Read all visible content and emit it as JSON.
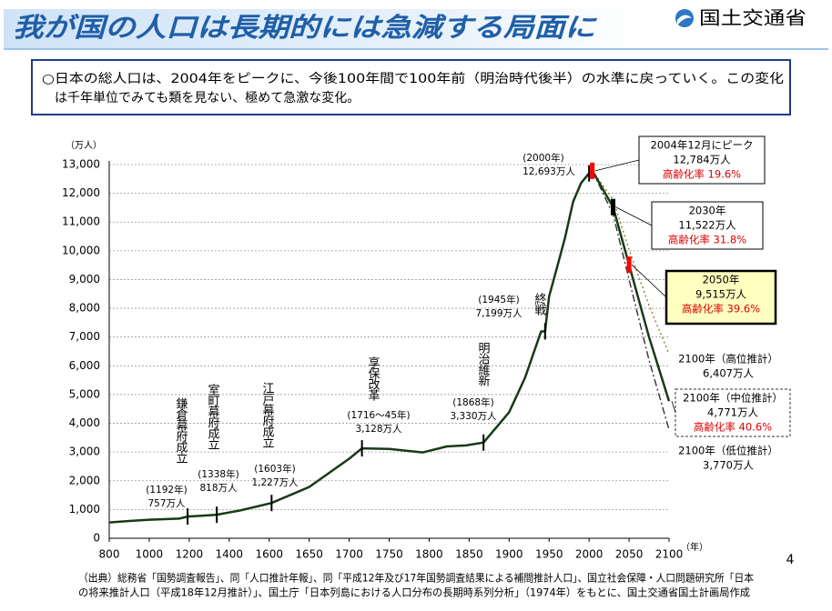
{
  "header": {
    "title": "我が国の人口は長期的には急減する局面に",
    "logo": "国土交通省"
  },
  "summary": [
    "○日本の総人口は、2004年をピークに、今後100年間で100年前（明治時代後半）の水準に戻っていく。この変化",
    "は千年単位でみても類を見ない、極めて急激な変化。"
  ],
  "footer": {
    "source": [
      "（出典）総務省「国勢調査報告」、同「人口推計年報」、同「平成12年及び17年国勢調査結果による補間推計人口」、国立社会保障・人口問題研究所「日本",
      "の将来推計人口（平成18年12月推計）」、国土庁「日本列島における人口分布の長期時系列分析」（1974年）をもとに、国土交通省国土計画局作成"
    ],
    "page": "4"
  },
  "chart_data": {
    "type": "line",
    "y_label": "（万人）",
    "x_label": "（年）",
    "xlim": [
      800,
      2100
    ],
    "xticks": [
      800,
      1000,
      1200,
      1400,
      1600,
      1650,
      1700,
      1750,
      1800,
      1850,
      1900,
      1950,
      2000,
      2050,
      2100
    ],
    "ylim": [
      0,
      13000
    ],
    "yticks": [
      0,
      {
        "value": 1000,
        "label": "1,000"
      },
      {
        "value": 2000,
        "label": "2,000"
      },
      {
        "value": 3000,
        "label": "3,000"
      },
      {
        "value": 4000,
        "label": "4,000"
      },
      {
        "value": 5000,
        "label": "5,000"
      },
      {
        "value": 6000,
        "label": "6,000"
      },
      {
        "value": 7000,
        "label": "7,000"
      },
      {
        "value": 8000,
        "label": "8,000"
      },
      {
        "value": 9000,
        "label": "9,000"
      },
      {
        "value": 10000,
        "label": "10,000"
      },
      {
        "value": 11000,
        "label": "11,000"
      },
      {
        "value": 12000,
        "label": "12,000"
      },
      {
        "value": 13000,
        "label": "13,000"
      }
    ],
    "grid": true,
    "series": [
      {
        "color": "#173a17",
        "dash": "solid",
        "x": [
          800,
          900,
          1000,
          1150,
          1192,
          1280,
          1338,
          1450,
          1603,
          1650,
          1700,
          1716,
          1750,
          1792,
          1822,
          1846,
          1868,
          1900,
          1920,
          1940,
          1945,
          1950,
          1960,
          1970,
          1980,
          1990,
          2000,
          2004
        ],
        "values": [
          551,
          600,
          644,
          684,
          757,
          790,
          818,
          960,
          1227,
          1781,
          2769,
          3128,
          3110,
          2987,
          3194,
          3230,
          3330,
          4385,
          5596,
          7193,
          7199,
          8411,
          9430,
          10467,
          11706,
          12361,
          12693,
          12784
        ]
      },
      {
        "color": "#8b7d3a",
        "dash": "dotted",
        "x": [
          2004,
          2030,
          2050,
          2075,
          2100
        ],
        "values": [
          12784,
          11789,
          10044,
          8100,
          6407
        ]
      },
      {
        "color": "#173a17",
        "dash": "solid",
        "x": [
          2004,
          2030,
          2050,
          2075,
          2100
        ],
        "values": [
          12784,
          11522,
          9515,
          7000,
          4771
        ]
      },
      {
        "color": "#333333",
        "dash": "dashdot",
        "x": [
          2004,
          2030,
          2050,
          2075,
          2100
        ],
        "values": [
          12784,
          11267,
          8997,
          6200,
          3770
        ]
      }
    ],
    "events": [
      {
        "event": "鎌倉幕府成立",
        "year_label": "(1192年)",
        "x": 1192,
        "value": 757,
        "value_label": "757万人"
      },
      {
        "event": "室町幕府成立",
        "year_label": "(1338年)",
        "x": 1338,
        "value": 818,
        "value_label": "818万人"
      },
      {
        "event": "江戸幕府成立",
        "year_label": "(1603年)",
        "x": 1603,
        "value": 1227,
        "value_label": "1,227万人"
      },
      {
        "event": "享保改革",
        "year_label": "(1716～45年)",
        "x": 1716,
        "value": 3128,
        "value_label": "3,128万人"
      },
      {
        "event": "明治維新",
        "year_label": "(1868年)",
        "x": 1868,
        "value": 3330,
        "value_label": "3,330万人"
      },
      {
        "event": "終戦",
        "year_label": "(1945年)",
        "x": 1945,
        "value": 7199,
        "value_label": "7,199万人"
      },
      {
        "year_label": "(2000年)",
        "x": 2000,
        "value": 12693,
        "value_label": "12,693万人"
      }
    ],
    "callouts": [
      {
        "title": "2004年12月にピーク",
        "x": 2004,
        "value": 12784,
        "value_label": "12,784万人",
        "aging": "高齢化率 19.6%",
        "box": "solid",
        "marker_color": "#ff0000"
      },
      {
        "title": "2030年",
        "x": 2030,
        "value": 11522,
        "value_label": "11,522万人",
        "aging": "高齢化率 31.8%",
        "box": "solid",
        "marker_color": "#000000"
      },
      {
        "title": "2050年",
        "x": 2050,
        "value": 9515,
        "value_label": "9,515万人",
        "aging": "高齢化率 39.6%",
        "box": "highlight",
        "marker_color": "#ff0000"
      },
      {
        "title": "2100年（高位推計）",
        "x": 2100,
        "value": 6407,
        "value_label": "6,407万人",
        "box": "none"
      },
      {
        "title": "2100年（中位推計）",
        "x": 2100,
        "value": 4771,
        "value_label": "4,771万人",
        "aging": "高齢化率 40.6%",
        "box": "dashed"
      },
      {
        "title": "2100年（低位推計）",
        "x": 2100,
        "value": 3770,
        "value_label": "3,770万人",
        "box": "none"
      }
    ]
  }
}
